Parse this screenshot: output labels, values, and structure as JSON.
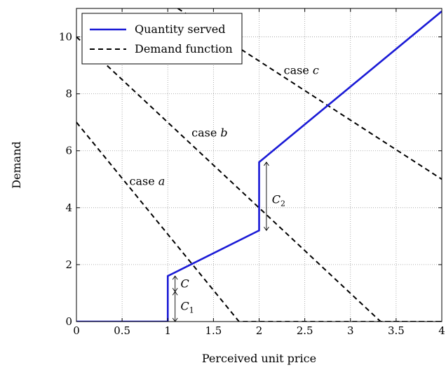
{
  "chart_data": {
    "type": "line",
    "xlabel": "Perceived unit price",
    "ylabel": "Demand",
    "xlim": [
      0,
      4
    ],
    "ylim": [
      0,
      11
    ],
    "xticks": [
      0,
      0.5,
      1,
      1.5,
      2,
      2.5,
      3,
      3.5,
      4
    ],
    "xtick_labels": [
      "0",
      "0.5",
      "1",
      "1.5",
      "2",
      "2.5",
      "3",
      "3.5",
      "4"
    ],
    "yticks": [
      0,
      2,
      4,
      6,
      8,
      10
    ],
    "ytick_labels": [
      "0",
      "2",
      "4",
      "6",
      "8",
      "10"
    ],
    "grid": true,
    "legend_placement": "top-left",
    "series": [
      {
        "name": "Quantity served",
        "style": "solid",
        "color": "#1a1ad6",
        "x": [
          0,
          1,
          1,
          2,
          2,
          4
        ],
        "y": [
          0,
          0,
          1.6,
          3.2,
          5.6,
          10.9
        ]
      },
      {
        "name": "Demand function",
        "style": "dashed",
        "color": "#000000",
        "lines": [
          {
            "x": [
              0,
              1.78,
              4
            ],
            "y": [
              7,
              0,
              0
            ]
          },
          {
            "x": [
              0,
              3.33,
              4
            ],
            "y": [
              10,
              0,
              0
            ]
          },
          {
            "x": [
              1.11,
              4
            ],
            "y": [
              11,
              5
            ]
          }
        ]
      }
    ],
    "annotations": [
      {
        "prefix": "case ",
        "var": "a",
        "x": 0.58,
        "y": 4.8
      },
      {
        "prefix": "case ",
        "var": "b",
        "x": 1.26,
        "y": 6.5
      },
      {
        "prefix": "case ",
        "var": "c",
        "x": 2.27,
        "y": 8.7
      }
    ],
    "brackets": [
      {
        "x": 1.08,
        "y0": 1.6,
        "y1": 1.05,
        "label": "C",
        "sub": "",
        "label_x": 1.14,
        "label_y": 1.35
      },
      {
        "x": 1.08,
        "y0": 1.05,
        "y1": 0,
        "label": "C",
        "sub": "1",
        "label_x": 1.14,
        "label_y": 0.55
      },
      {
        "x": 2.08,
        "y0": 5.6,
        "y1": 3.2,
        "label": "C",
        "sub": "2",
        "label_x": 2.14,
        "label_y": 4.3
      }
    ]
  }
}
